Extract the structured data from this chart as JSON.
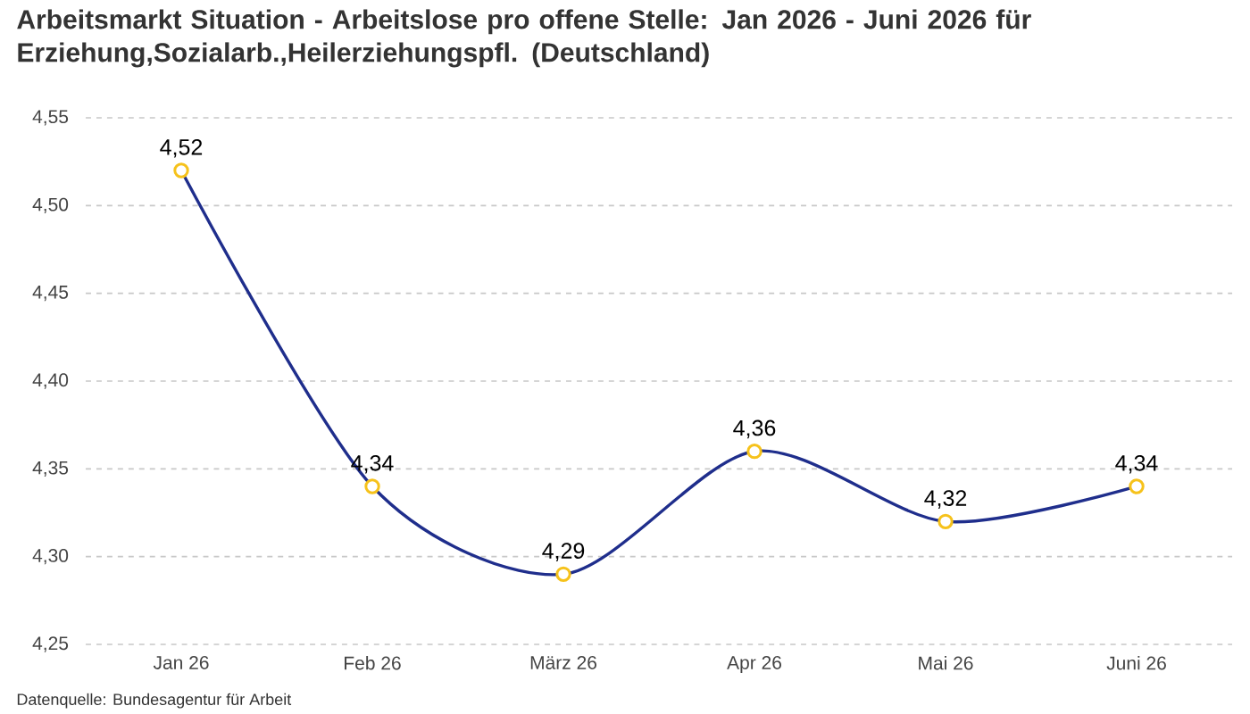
{
  "chart_data": {
    "type": "line",
    "title": "Arbeitsmarkt Situation - Arbeitslose pro offene Stelle: Jan 2026 - Juni 2026 für Erziehung,Sozialarb.,Heilerziehungspfl. (Deutschland)",
    "categories": [
      "Jan 26",
      "Feb 26",
      "März 26",
      "Apr 26",
      "Mai 26",
      "Juni 26"
    ],
    "values": [
      4.52,
      4.34,
      4.29,
      4.36,
      4.32,
      4.34
    ],
    "value_labels": [
      "4,52",
      "4,34",
      "4,29",
      "4,36",
      "4,32",
      "4,34"
    ],
    "color": "#1f2e8c",
    "ylim": [
      4.25,
      4.55
    ],
    "yticks": [
      {
        "value": 4.25,
        "label": "4,25"
      },
      {
        "value": 4.3,
        "label": "4,30"
      },
      {
        "value": 4.35,
        "label": "4,35"
      },
      {
        "value": 4.4,
        "label": "4,40"
      },
      {
        "value": 4.45,
        "label": "4,45"
      },
      {
        "value": 4.5,
        "label": "4,50"
      },
      {
        "value": 4.55,
        "label": "4,55"
      }
    ],
    "grid": "y",
    "marker": "circle",
    "line_style": "solid",
    "annotations": [
      "Datenquelle: Bundesagentur für Arbeit"
    ]
  }
}
